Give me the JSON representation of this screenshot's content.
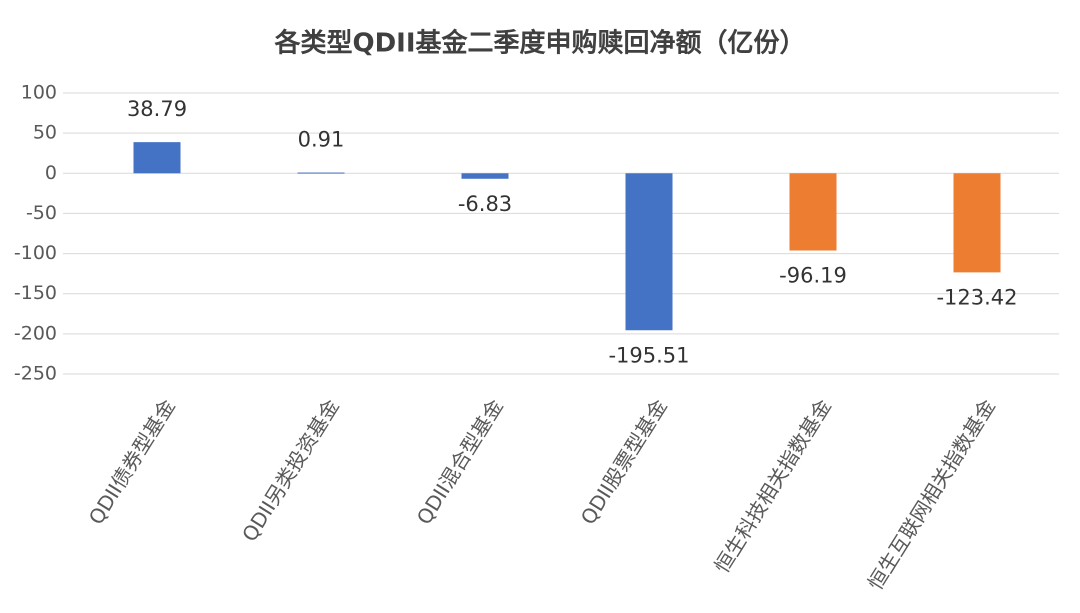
{
  "chart_data": {
    "type": "bar",
    "title": "各类型QDII基金二季度申购赎回净额（亿份）",
    "categories": [
      "QDII债券型基金",
      "QDII另类投资基金",
      "QDII混合型基金",
      "QDII股票型基金",
      "恒生科技相关指数基金",
      "恒生互联网相关指数基金"
    ],
    "values": [
      38.79,
      0.91,
      -6.83,
      -195.51,
      -96.19,
      -123.42
    ],
    "colors": [
      "#4472c4",
      "#4472c4",
      "#4472c4",
      "#4472c4",
      "#ed7d31",
      "#ed7d31"
    ],
    "ylim": [
      -250,
      100
    ],
    "yticks": [
      -250,
      -200,
      -150,
      -100,
      -50,
      0,
      50,
      100
    ],
    "grid": true
  }
}
